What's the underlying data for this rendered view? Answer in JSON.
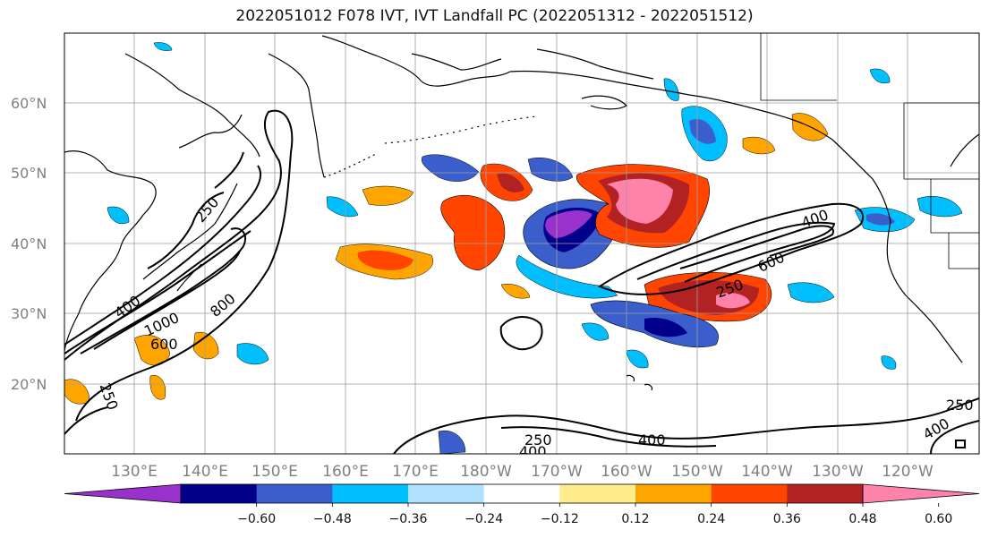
{
  "title": "2022051012 F078 IVT, IVT Landfall PC (2022051312 - 2022051512)",
  "lat_labels": [
    "60°N",
    "50°N",
    "40°N",
    "30°N",
    "20°N"
  ],
  "lon_labels": [
    "130°E",
    "140°E",
    "150°E",
    "160°E",
    "170°E",
    "180°W",
    "170°W",
    "160°W",
    "150°W",
    "140°W",
    "130°W",
    "120°W"
  ],
  "colorbar": {
    "colors": [
      "#9932cc",
      "#00008b",
      "#3a5fcd",
      "#00bfff",
      "#b0e2ff",
      "#ffffff",
      "#ffec8b",
      "#ffa500",
      "#ff4500",
      "#b22222",
      "#ff82ab"
    ],
    "tick_labels": [
      "−0.60",
      "−0.48",
      "−0.36",
      "−0.24",
      "−0.12",
      "0.12",
      "0.24",
      "0.36",
      "0.48",
      "0.60"
    ]
  },
  "contour_labels": [
    "250",
    "400",
    "600",
    "800",
    "1000",
    "400",
    "600",
    "250",
    "250",
    "400",
    "250",
    "400",
    "250",
    "400"
  ],
  "colors": {
    "grid": "#9e9e9e",
    "coast": "#000000",
    "contour": "#000000"
  }
}
